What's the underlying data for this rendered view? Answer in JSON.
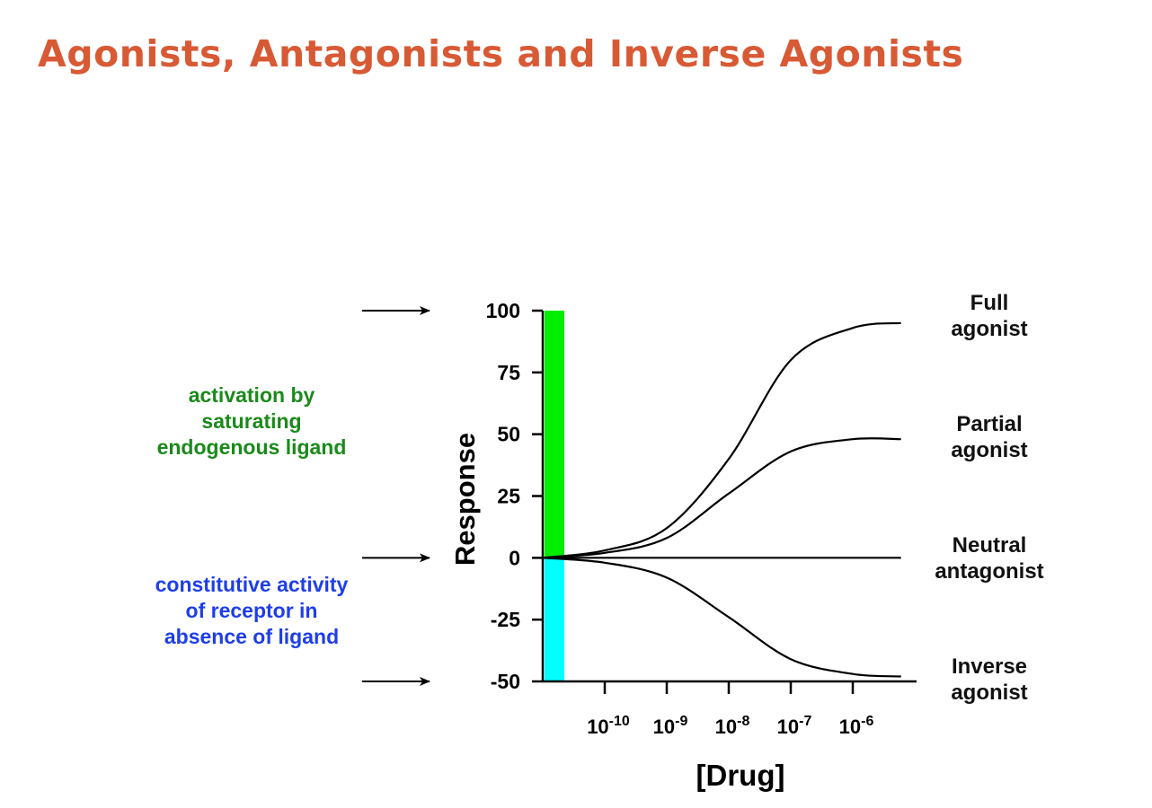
{
  "title": "Agonists, Antagonists and Inverse Agonists",
  "annotations": {
    "endogenous": [
      "activation by",
      "saturating",
      "endogenous ligand"
    ],
    "constitutive": [
      "constitutive activity",
      "of receptor in",
      "absence of ligand"
    ]
  },
  "colors": {
    "title": "#d85a35",
    "endogenous_bar": "#00ee00",
    "constitutive_bar": "#00ffff",
    "endogenous_text": "#1a8a1a",
    "constitutive_text": "#1e3ee8",
    "curves": "#000000"
  },
  "chart_data": {
    "type": "line",
    "xlabel": "[Drug]",
    "ylabel": "Response",
    "x_scale": "log",
    "xlim": [
      1e-11,
      1e-05
    ],
    "ylim": [
      -50,
      100
    ],
    "x_ticks": [
      {
        "value": 1e-10,
        "base": "10",
        "exp": "-10"
      },
      {
        "value": 1e-09,
        "base": "10",
        "exp": "-9"
      },
      {
        "value": 1e-08,
        "base": "10",
        "exp": "-8"
      },
      {
        "value": 1e-07,
        "base": "10",
        "exp": "-7"
      },
      {
        "value": 1e-06,
        "base": "10",
        "exp": "-6"
      }
    ],
    "y_ticks": [
      "100",
      "75",
      "50",
      "25",
      "0",
      "-25",
      "-50"
    ],
    "bars": [
      {
        "from": 0,
        "to": 100,
        "color": "#00ee00"
      },
      {
        "from": 0,
        "to": -50,
        "color": "#00ffff"
      }
    ],
    "x": [
      1e-11,
      1e-10,
      1e-09,
      1e-08,
      1e-07,
      1e-06,
      6e-06
    ],
    "series": [
      {
        "name": "Full agonist",
        "label_lines": [
          "Full",
          "agonist"
        ],
        "values": [
          0,
          3,
          12,
          40,
          80,
          93,
          95
        ]
      },
      {
        "name": "Partial agonist",
        "label_lines": [
          "Partial",
          "agonist"
        ],
        "values": [
          0,
          2,
          8,
          26,
          43,
          48,
          48
        ]
      },
      {
        "name": "Neutral antagonist",
        "label_lines": [
          "Neutral",
          "antagonist"
        ],
        "values": [
          0,
          0,
          0,
          0,
          0,
          0,
          0
        ]
      },
      {
        "name": "Inverse agonist",
        "label_lines": [
          "Inverse",
          "agonist"
        ],
        "values": [
          0,
          -2,
          -8,
          -24,
          -41,
          -47,
          -48
        ]
      }
    ],
    "reference_arrows": [
      100,
      0,
      -50
    ]
  }
}
